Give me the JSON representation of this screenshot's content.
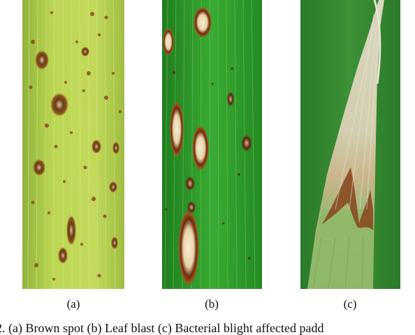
{
  "figure": {
    "panels": [
      {
        "id": "a",
        "label": "(a)",
        "subject": "rice leaf with brown spot lesions"
      },
      {
        "id": "b",
        "label": "(b)",
        "subject": "rice leaf with leaf blast lesions"
      },
      {
        "id": "c",
        "label": "(c)",
        "subject": "rice leaf with bacterial blight"
      }
    ],
    "caption": "2.   (a) Brown spot (b) Leaf blast (c) Bacterial blight affected padd"
  },
  "colors": {
    "leaf_a": "#b6cf4a",
    "leaf_b": "#2e9a2a",
    "leaf_c_bg": "#2f7e2e",
    "lesion_brown": "#7a3e12",
    "lesion_center": "#f2e6c8"
  }
}
